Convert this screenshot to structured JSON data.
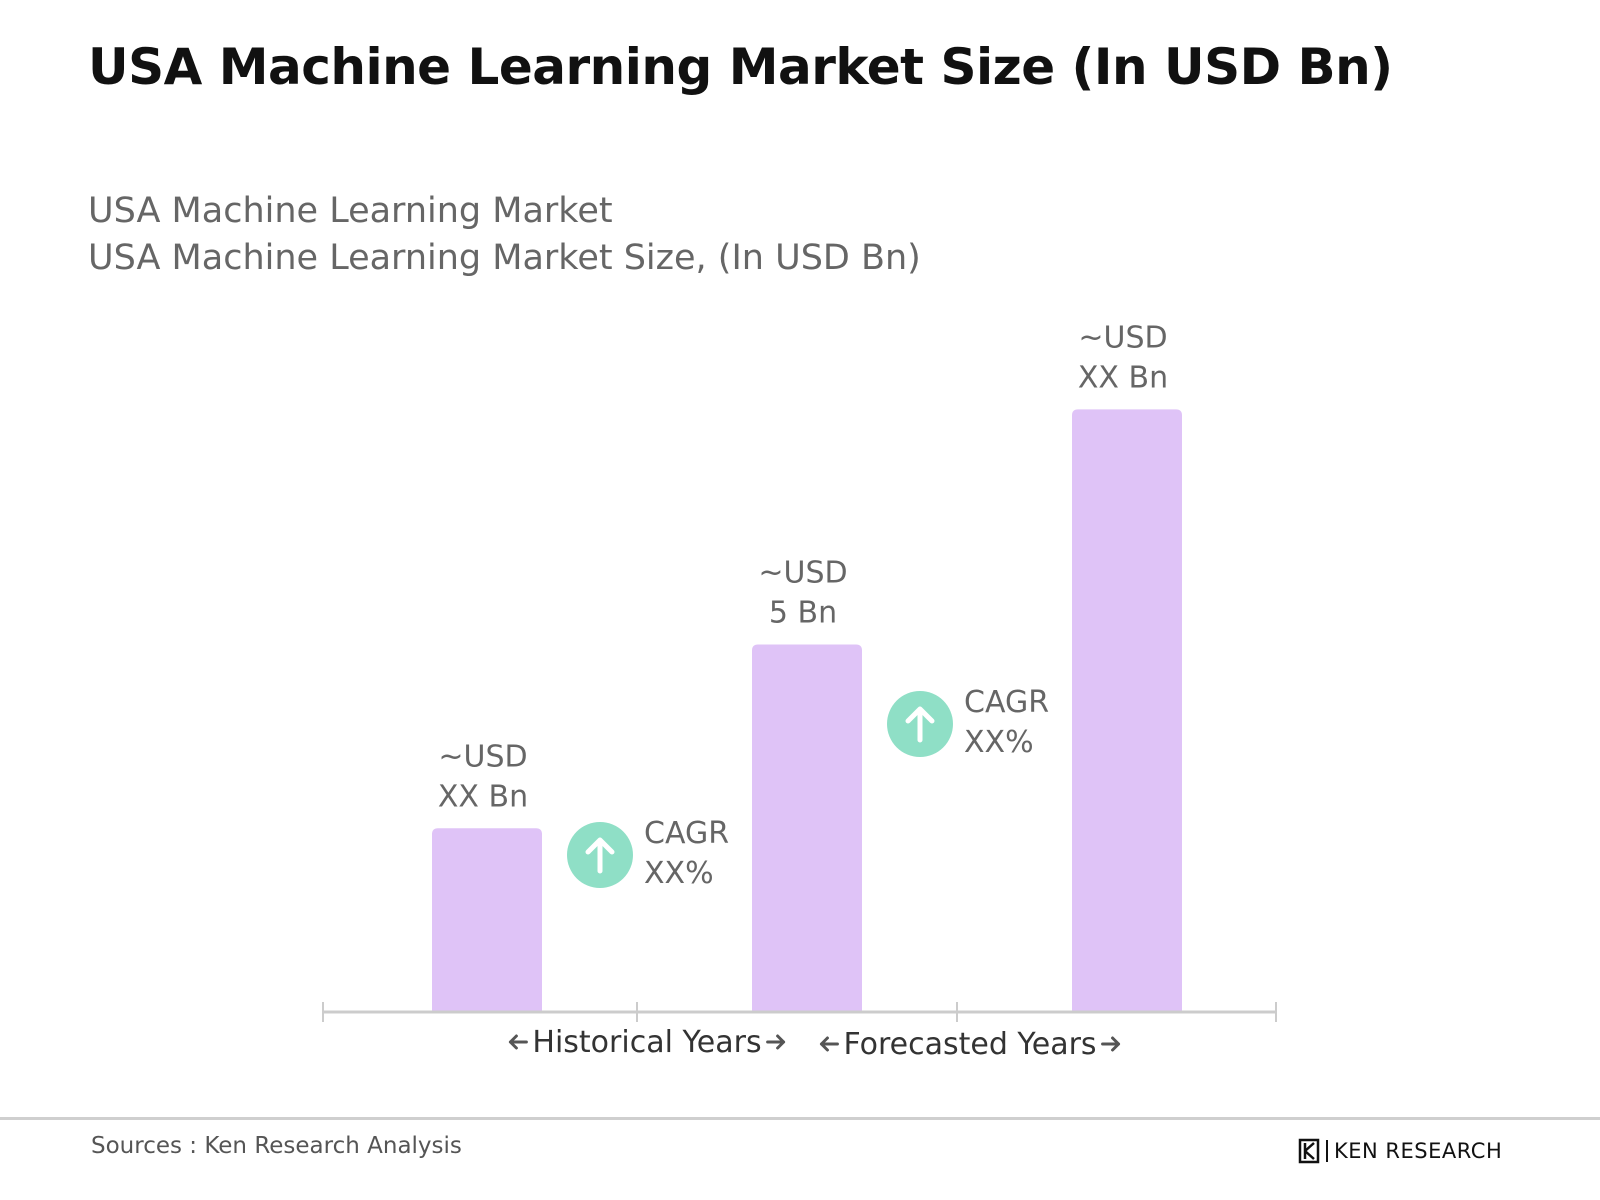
{
  "title": "USA Machine Learning Market Size (In USD Bn)",
  "subtitle_lines": [
    "USA Machine Learning Market",
    "USA Machine Learning Market Size, (In USD Bn)"
  ],
  "colors": {
    "bar": "#dfc3f7",
    "cagr_circle": "#8fdfc6",
    "axis": "#cccccc",
    "label_text": "#666666",
    "period_text": "#333333"
  },
  "chart_data": {
    "type": "bar",
    "title": "USA Machine Learning Market Size (In USD Bn)",
    "subtitle": "USA Machine Learning Market Size, (In USD Bn)",
    "categories": [
      "",
      "",
      ""
    ],
    "values": [
      2.5,
      5,
      8.2
    ],
    "value_labels": [
      [
        "~USD",
        "XX Bn"
      ],
      [
        "~USD",
        "5 Bn"
      ],
      [
        "~USD",
        "XX Bn"
      ]
    ],
    "ylim": [
      0,
      8.6
    ],
    "grid": false,
    "annotations": [
      {
        "type": "cagr",
        "between": [
          0,
          1
        ],
        "lines": [
          "CAGR",
          "XX%"
        ],
        "icon": "arrow-up-icon"
      },
      {
        "type": "cagr",
        "between": [
          1,
          2
        ],
        "lines": [
          "CAGR",
          "XX%"
        ],
        "icon": "arrow-up-icon"
      }
    ],
    "periods": [
      {
        "label": "Historical Years",
        "span": [
          0,
          1
        ]
      },
      {
        "label": "Forecasted Years",
        "span": [
          1,
          2
        ]
      }
    ]
  },
  "footer": {
    "source": "Sources : Ken Research Analysis",
    "brand": "KEN RESEARCH"
  }
}
